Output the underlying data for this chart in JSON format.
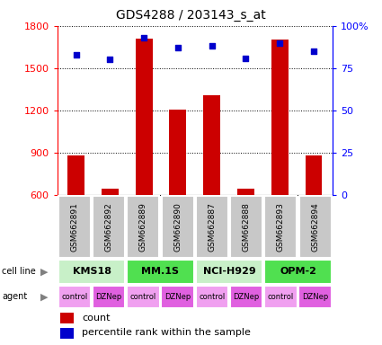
{
  "title": "GDS4288 / 203143_s_at",
  "samples": [
    "GSM662891",
    "GSM662892",
    "GSM662889",
    "GSM662890",
    "GSM662887",
    "GSM662888",
    "GSM662893",
    "GSM662894"
  ],
  "counts": [
    880,
    645,
    1710,
    1205,
    1310,
    645,
    1700,
    880
  ],
  "percentile_ranks": [
    83,
    80,
    93,
    87,
    88,
    81,
    90,
    85
  ],
  "cell_lines": [
    {
      "label": "KMS18",
      "start": 0,
      "end": 2,
      "color": "#c8f0c8"
    },
    {
      "label": "MM.1S",
      "start": 2,
      "end": 4,
      "color": "#50e050"
    },
    {
      "label": "NCI-H929",
      "start": 4,
      "end": 6,
      "color": "#c8f0c8"
    },
    {
      "label": "OPM-2",
      "start": 6,
      "end": 8,
      "color": "#50e050"
    }
  ],
  "agents": [
    "control",
    "DZNep",
    "control",
    "DZNep",
    "control",
    "DZNep",
    "control",
    "DZNep"
  ],
  "agent_colors": [
    "#f0a0f0",
    "#e060e0",
    "#f0a0f0",
    "#e060e0",
    "#f0a0f0",
    "#e060e0",
    "#f0a0f0",
    "#e060e0"
  ],
  "bar_color": "#cc0000",
  "dot_color": "#0000cc",
  "ylim_left": [
    600,
    1800
  ],
  "ylim_right": [
    0,
    100
  ],
  "yticks_left": [
    600,
    900,
    1200,
    1500,
    1800
  ],
  "yticks_right": [
    0,
    25,
    50,
    75,
    100
  ],
  "yticklabels_right": [
    "0",
    "25",
    "50",
    "75",
    "100%"
  ],
  "sample_bg_color": "#C8C8C8",
  "bar_width": 0.5,
  "fig_width": 4.25,
  "fig_height": 3.84,
  "dpi": 100
}
